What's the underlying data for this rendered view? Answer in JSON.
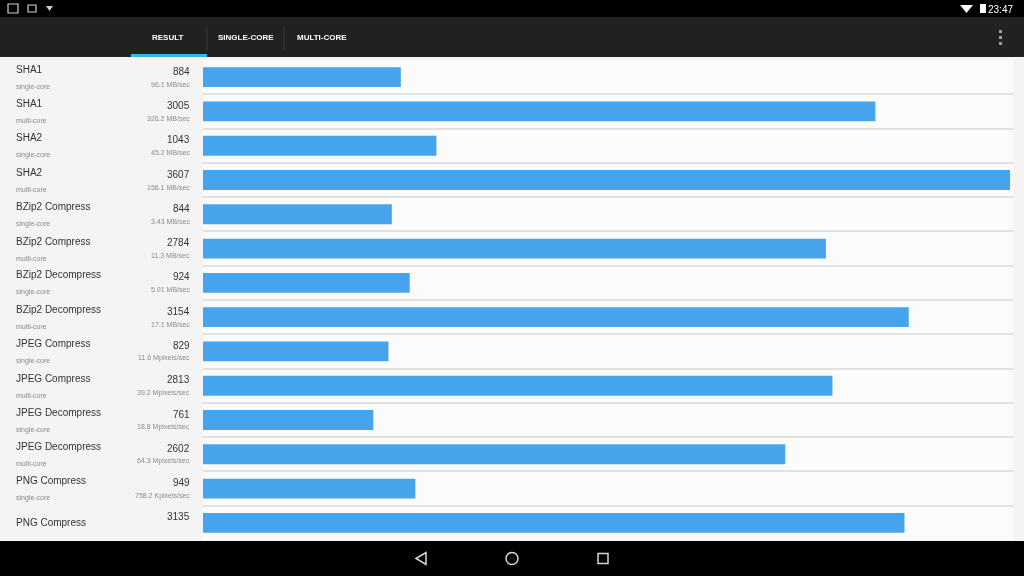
{
  "chart_data": {
    "type": "bar",
    "orientation": "horizontal",
    "categories": [
      "SHA1\nsingle-core",
      "SHA1\nmulti-core",
      "SHA2\nsingle-core",
      "SHA2\nmulti-core",
      "BZip2 Compress\nsingle-core",
      "BZip2 Compress\nmulti-core",
      "BZip2 Decompress\nsingle-core",
      "BZip2 Decompress\nmulti-core",
      "JPEG Compress\nsingle-core",
      "JPEG Compress\nmulti-core",
      "JPEG Decompress\nsingle-core",
      "JPEG Decompress\nmulti-core",
      "PNG Compress\nsingle-core",
      "PNG Compress"
    ],
    "values": [
      884,
      3005,
      1043,
      3607,
      844,
      2784,
      924,
      3154,
      829,
      2813,
      761,
      2602,
      949,
      3135
    ],
    "data_labels": true,
    "color": "#45a4ec",
    "xlim": [
      0,
      3620
    ],
    "grid": "y",
    "tick_labels": "y",
    "annotations": [
      "RESULT",
      "SINGLE-CORE",
      "MULTI-CORE",
      "23:47",
      "96.1 MB/sec",
      "326.2 MB/sec",
      "45.2 MB/sec",
      "156.1 MB/sec",
      "3.43 MB/sec",
      "11.3 MB/sec",
      "5.01 MB/sec",
      "17.1 MB/sec",
      "11.6 Mpixels/sec",
      "39.2 Mpixels/sec",
      "18.8 Mpixels/sec",
      "64.3 Mpixels/sec",
      "758.2 Kpixels/sec"
    ]
  }
}
